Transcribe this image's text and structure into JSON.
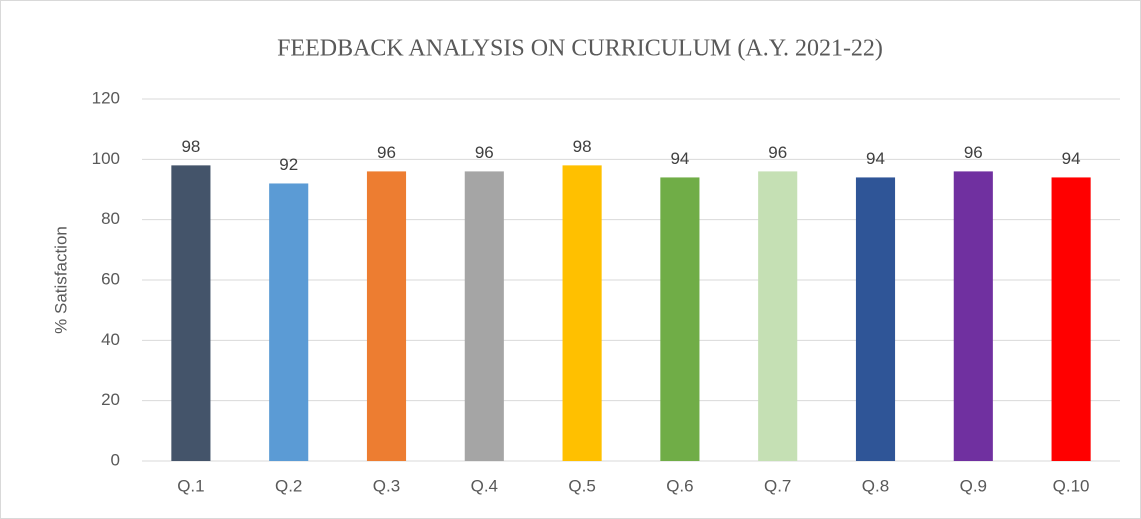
{
  "chart_data": {
    "type": "bar",
    "title": "FEEDBACK ANALYSIS ON CURRICULUM (A.Y. 2021-22)",
    "y_label": "% Satisfaction",
    "categories": [
      "Q.1",
      "Q.2",
      "Q.3",
      "Q.4",
      "Q.5",
      "Q.6",
      "Q.7",
      "Q.8",
      "Q.9",
      "Q.10"
    ],
    "values": [
      98,
      92,
      96,
      96,
      98,
      94,
      96,
      94,
      96,
      94
    ],
    "colors": [
      "#44546a",
      "#5b9bd5",
      "#ed7d31",
      "#a5a5a5",
      "#ffc000",
      "#70ad47",
      "#c5e0b4",
      "#2f5597",
      "#7030a0",
      "#ff0000"
    ],
    "ylim": [
      0,
      120
    ],
    "yticks": [
      0,
      20,
      40,
      60,
      80,
      100,
      120
    ],
    "grid": true
  }
}
